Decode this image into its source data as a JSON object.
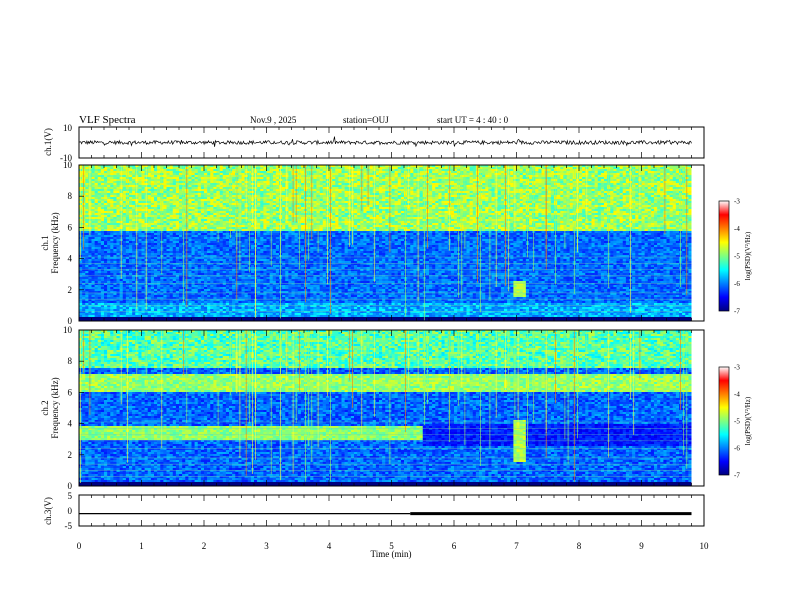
{
  "header": {
    "title": "VLF Spectra",
    "date": "Nov.9  , 2025",
    "station": "station=OUJ",
    "start_ut": "start  UT =   4 : 40 : 0"
  },
  "chart_data": [
    {
      "type": "line",
      "name": "ch1-waveform",
      "ylabel": "ch.1(V)",
      "ylim": [
        -10,
        10
      ],
      "yticks": [
        "10",
        "-10"
      ],
      "baseline": 0,
      "noise_amplitude": 1.2,
      "xlim": [
        0,
        10
      ]
    },
    {
      "type": "heatmap",
      "name": "ch1-spectrogram",
      "ylabel_channel": "ch.1",
      "ylabel": "Frequency  (kHz)",
      "ylim": [
        0,
        10
      ],
      "yticks": [
        "0",
        "2",
        "4",
        "6",
        "8",
        "10"
      ],
      "xlim": [
        0,
        9.8
      ],
      "features": {
        "hiss_band_upper_khz": 5.8,
        "bright_event_time_min": 7.05,
        "bright_event_freq_khz": 2.0
      },
      "colorbar": {
        "label": "log(PSD)(V²/Hz)",
        "range": [
          -7,
          -3
        ],
        "ticks": [
          "-3",
          "-4",
          "-5",
          "-6",
          "-7"
        ]
      }
    },
    {
      "type": "heatmap",
      "name": "ch2-spectrogram",
      "ylabel_channel": "ch.2",
      "ylabel": "Frequency  (kHz)",
      "ylim": [
        0,
        10
      ],
      "yticks": [
        "0",
        "2",
        "4",
        "6",
        "8",
        "10"
      ],
      "xlim": [
        0,
        9.8
      ],
      "features": {
        "band_6khz_khz": 6.6,
        "band_3khz_khz": 3.4,
        "band_3khz_end_min": 5.5,
        "bright_event_time_min": 7.05,
        "bright_event_freq_khz": 2.0
      },
      "colorbar": {
        "label": "log(PSD)(V²/Hz)",
        "range": [
          -7,
          -3
        ],
        "ticks": [
          "-3",
          "-4",
          "-5",
          "-6",
          "-7"
        ]
      }
    },
    {
      "type": "line",
      "name": "ch3-signal",
      "ylabel": "ch.3(V)",
      "ylim": [
        -5,
        5
      ],
      "yticks": [
        "5",
        "0",
        "-5"
      ],
      "x": [
        0,
        5.3,
        5.3,
        9.8
      ],
      "y": [
        -1.0,
        -1.0,
        -1.0,
        -1.0
      ],
      "thickness_change_min": 5.3
    }
  ],
  "xaxis": {
    "label": "Time  (min)",
    "range": [
      0,
      10
    ],
    "ticks": [
      "0",
      "1",
      "2",
      "3",
      "4",
      "5",
      "6",
      "7",
      "8",
      "9",
      "10"
    ]
  },
  "colors": {
    "jet": [
      "#00007f",
      "#0000ff",
      "#007fff",
      "#00ffff",
      "#7fff7f",
      "#ffff00",
      "#ff7f00",
      "#ff0000",
      "#7f0000"
    ]
  }
}
